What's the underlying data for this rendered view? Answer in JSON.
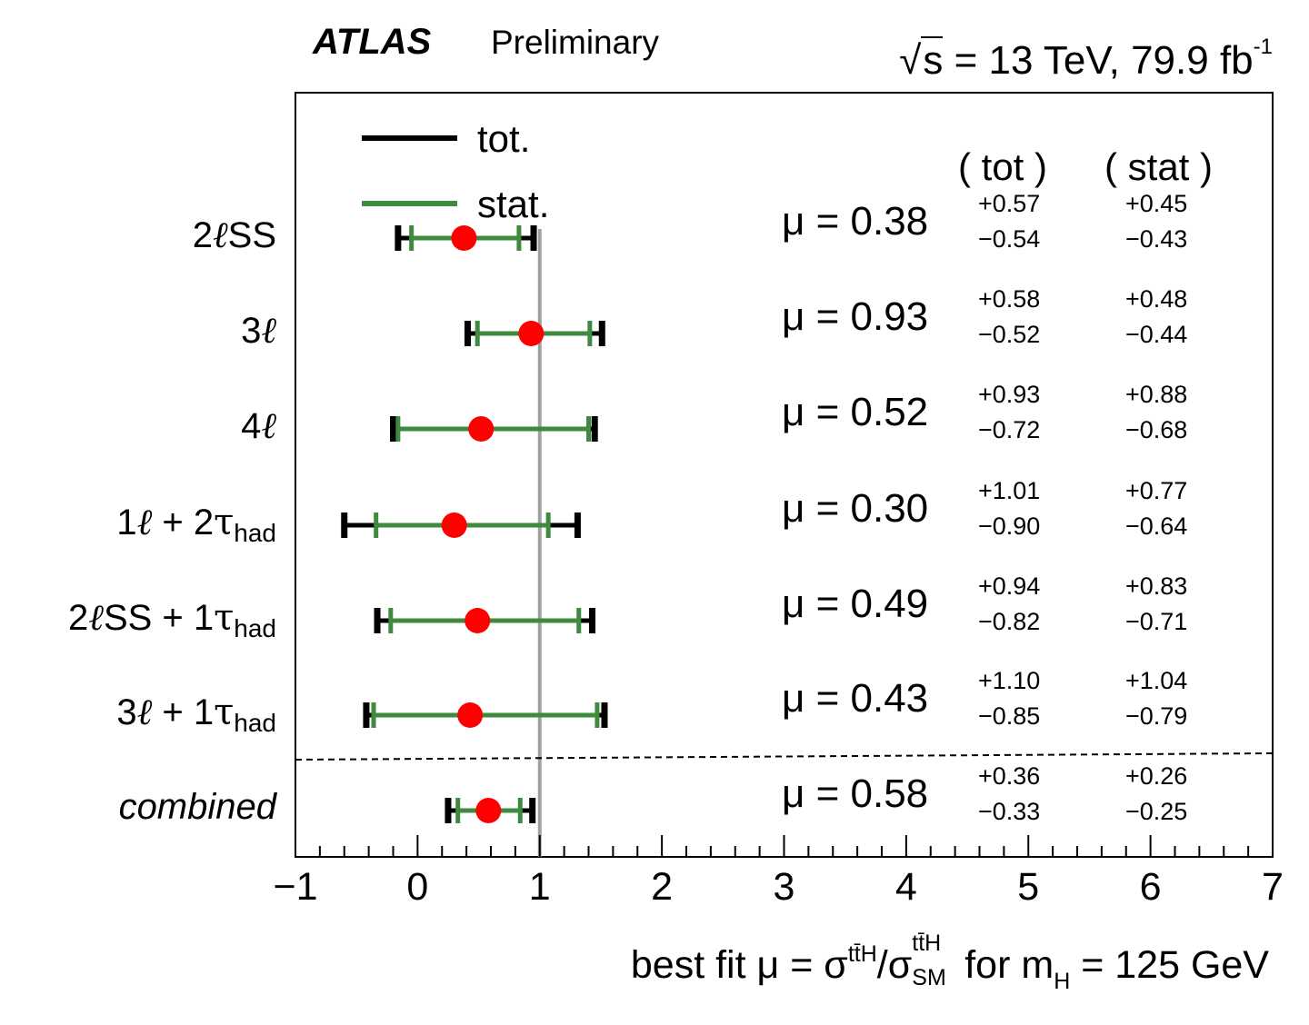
{
  "header": {
    "experiment": "ATLAS",
    "status": "Preliminary",
    "energy_prefix": "s",
    "energy_text": " = 13 TeV, 79.9 fb",
    "energy_sup": "-1"
  },
  "legend": {
    "tot_label": "tot.",
    "stat_label": "stat."
  },
  "column_headers": {
    "tot": "( tot )",
    "stat": "( stat )"
  },
  "x_axis": {
    "label_prefix": "best fit μ = σ",
    "label_sup1": "tt̄H",
    "label_mid": "/σ",
    "label_sup2": "tt̄H",
    "label_sub2": "SM",
    "label_suffix": " for m",
    "label_sub3": "H",
    "label_tail": " = 125 GeV",
    "ticks": [
      "−1",
      "0",
      "1",
      "2",
      "3",
      "4",
      "5",
      "6",
      "7"
    ]
  },
  "chart_data": {
    "type": "scatter",
    "xlim": [
      -1,
      7
    ],
    "sm_reference": 1,
    "colors": {
      "tot": "#000000",
      "stat": "#3e8a3e",
      "point": "#ff0000",
      "sm_line": "#a0a0a0"
    },
    "rows": [
      {
        "label_a": "2",
        "label_b": "SS",
        "label_c": "",
        "label_d": "",
        "label_e": "",
        "mu": 0.38,
        "mu_text": "μ = 0.38",
        "tot_up": 0.57,
        "tot_dn": 0.54,
        "stat_up": 0.45,
        "stat_dn": 0.43,
        "tot_up_text": "+0.57",
        "tot_dn_text": "−0.54",
        "stat_up_text": "+0.45",
        "stat_dn_text": "−0.43"
      },
      {
        "label_a": "3",
        "label_b": "",
        "label_c": "",
        "label_d": "",
        "label_e": "",
        "mu": 0.93,
        "mu_text": "μ = 0.93",
        "tot_up": 0.58,
        "tot_dn": 0.52,
        "stat_up": 0.48,
        "stat_dn": 0.44,
        "tot_up_text": "+0.58",
        "tot_dn_text": "−0.52",
        "stat_up_text": "+0.48",
        "stat_dn_text": "−0.44"
      },
      {
        "label_a": "4",
        "label_b": "",
        "label_c": "",
        "label_d": "",
        "label_e": "",
        "mu": 0.52,
        "mu_text": "μ = 0.52",
        "tot_up": 0.93,
        "tot_dn": 0.72,
        "stat_up": 0.88,
        "stat_dn": 0.68,
        "tot_up_text": "+0.93",
        "tot_dn_text": "−0.72",
        "stat_up_text": "+0.88",
        "stat_dn_text": "−0.68"
      },
      {
        "label_a": "1",
        "label_b": "",
        "label_c": " + 2",
        "label_d": "τ",
        "label_e": "had",
        "mu": 0.3,
        "mu_text": "μ = 0.30",
        "tot_up": 1.01,
        "tot_dn": 0.9,
        "stat_up": 0.77,
        "stat_dn": 0.64,
        "tot_up_text": "+1.01",
        "tot_dn_text": "−0.90",
        "stat_up_text": "+0.77",
        "stat_dn_text": "−0.64"
      },
      {
        "label_a": "2",
        "label_b": "SS",
        "label_c": " + 1",
        "label_d": "τ",
        "label_e": "had",
        "mu": 0.49,
        "mu_text": "μ = 0.49",
        "tot_up": 0.94,
        "tot_dn": 0.82,
        "stat_up": 0.83,
        "stat_dn": 0.71,
        "tot_up_text": "+0.94",
        "tot_dn_text": "−0.82",
        "stat_up_text": "+0.83",
        "stat_dn_text": "−0.71"
      },
      {
        "label_a": "3",
        "label_b": "",
        "label_c": " + 1",
        "label_d": "τ",
        "label_e": "had",
        "mu": 0.43,
        "mu_text": "μ = 0.43",
        "tot_up": 1.1,
        "tot_dn": 0.85,
        "stat_up": 1.04,
        "stat_dn": 0.79,
        "tot_up_text": "+1.10",
        "tot_dn_text": "−0.85",
        "stat_up_text": "+1.04",
        "stat_dn_text": "−0.79"
      },
      {
        "label_a": "combined",
        "label_b": "",
        "label_c": "",
        "label_d": "",
        "label_e": "",
        "mu": 0.58,
        "mu_text": "μ = 0.58",
        "tot_up": 0.36,
        "tot_dn": 0.33,
        "stat_up": 0.26,
        "stat_dn": 0.25,
        "tot_up_text": "+0.36",
        "tot_dn_text": "−0.33",
        "stat_up_text": "+0.26",
        "stat_dn_text": "−0.25"
      }
    ]
  }
}
